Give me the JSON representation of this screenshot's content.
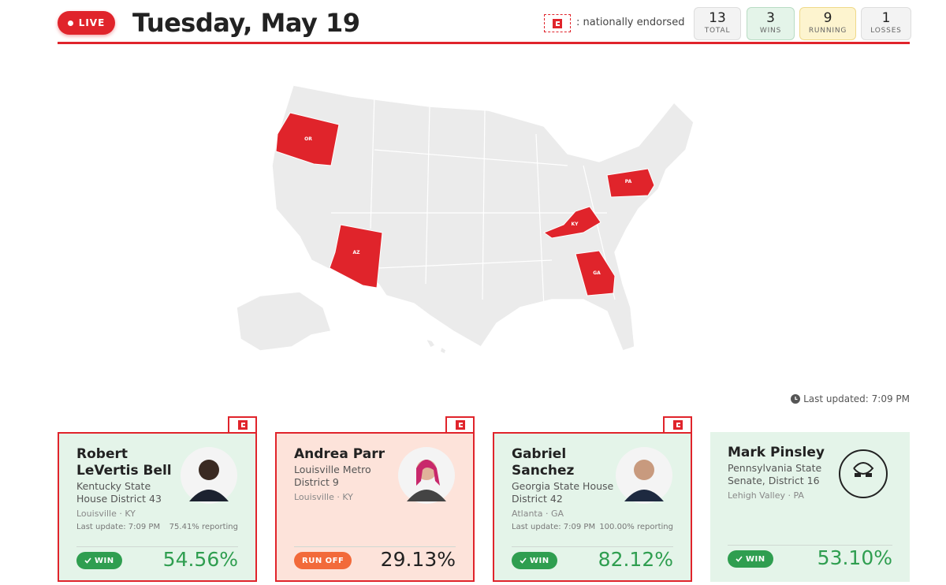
{
  "header": {
    "live": "LIVE",
    "date": "Tuesday, May 19",
    "legend": ": nationally endorsed",
    "stats": [
      {
        "value": 13,
        "label": "TOTAL"
      },
      {
        "value": 3,
        "label": "WINS"
      },
      {
        "value": 9,
        "label": "RUNNING"
      },
      {
        "value": 1,
        "label": "LOSSES"
      }
    ]
  },
  "map": {
    "states": [
      "OR",
      "PA",
      "KY",
      "AZ",
      "GA"
    ]
  },
  "last_updated": "Last updated: 7:09 PM",
  "cards": [
    {
      "name": "Robert LeVertis Bell",
      "office": "Kentucky State House District 43",
      "location": "Louisville · KY",
      "update": "Last update: 7:09 PM",
      "reporting": "75.41% reporting",
      "status": "WIN",
      "percent": "54.56%"
    },
    {
      "name": "Andrea Parr",
      "office": "Louisville Metro District 9",
      "location": "Louisville · KY",
      "status": "RUN OFF",
      "percent": "29.13%"
    },
    {
      "name": "Gabriel Sanchez",
      "office": "Georgia State House District 42",
      "location": "Atlanta · GA",
      "update": "Last update: 7:09 PM",
      "reporting": "100.00% reporting",
      "status": "WIN",
      "percent": "82.12%"
    },
    {
      "name": "Mark Pinsley",
      "office": "Pennsylvania State Senate, District 16",
      "location": "Lehigh Valley · PA",
      "status": "WIN",
      "percent": "53.10%"
    }
  ]
}
